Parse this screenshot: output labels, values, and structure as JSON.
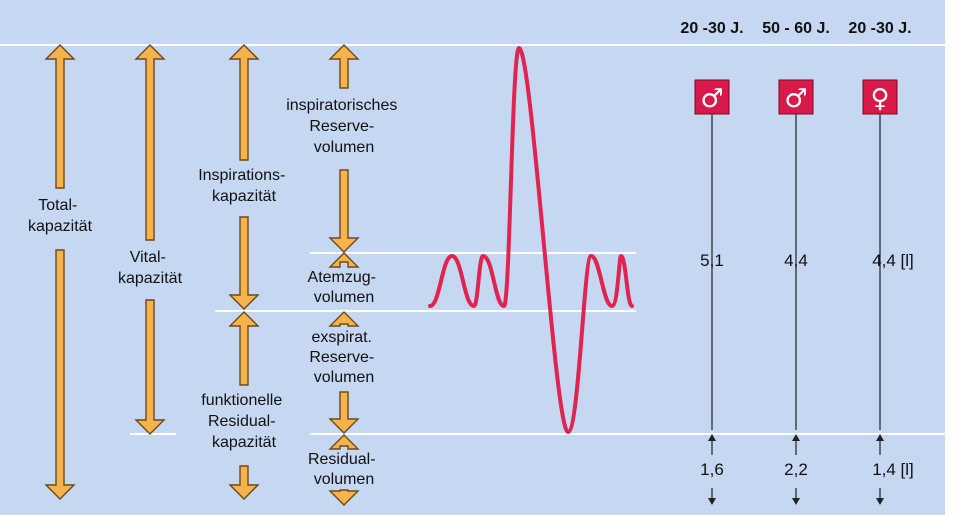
{
  "colors": {
    "background": "#c6d7f1",
    "arrow_fill": "#f6b24c",
    "arrow_stroke": "#6b4a1a",
    "curve": "#e0234f",
    "badge": "#d81a4a",
    "guide_line": "#ffffff"
  },
  "capacities": {
    "total": [
      "Total-",
      "kapazität"
    ],
    "vital": [
      "Vital-",
      "kapazität"
    ],
    "inspiration": [
      "Inspirations-",
      "kapazität"
    ],
    "functional_residual": [
      "funktionelle",
      "Residual-",
      "kapazität"
    ]
  },
  "volumes": {
    "inspiratory_reserve": [
      "inspiratorisches",
      "Reserve-",
      "volumen"
    ],
    "tidal": [
      "Atemzug-",
      "volumen"
    ],
    "expiratory_reserve": [
      "exspirat.",
      "Reserve-",
      "volumen"
    ],
    "residual": [
      "Residual-",
      "volumen"
    ]
  },
  "groups": [
    {
      "age": "20 -30 J.",
      "sex": "male",
      "icon": "male-symbol-icon",
      "symbol": "♂",
      "vital_capacity": "5,1",
      "residual_volume": "1,6"
    },
    {
      "age": "50 - 60 J.",
      "sex": "male",
      "icon": "male-symbol-icon",
      "symbol": "♂",
      "vital_capacity": "4,4",
      "residual_volume": "2,2"
    },
    {
      "age": "20 -30 J.",
      "sex": "female",
      "icon": "female-symbol-icon",
      "symbol": "♀",
      "vital_capacity": "4,4 [l]",
      "residual_volume": "1,4 [l]"
    }
  ]
}
